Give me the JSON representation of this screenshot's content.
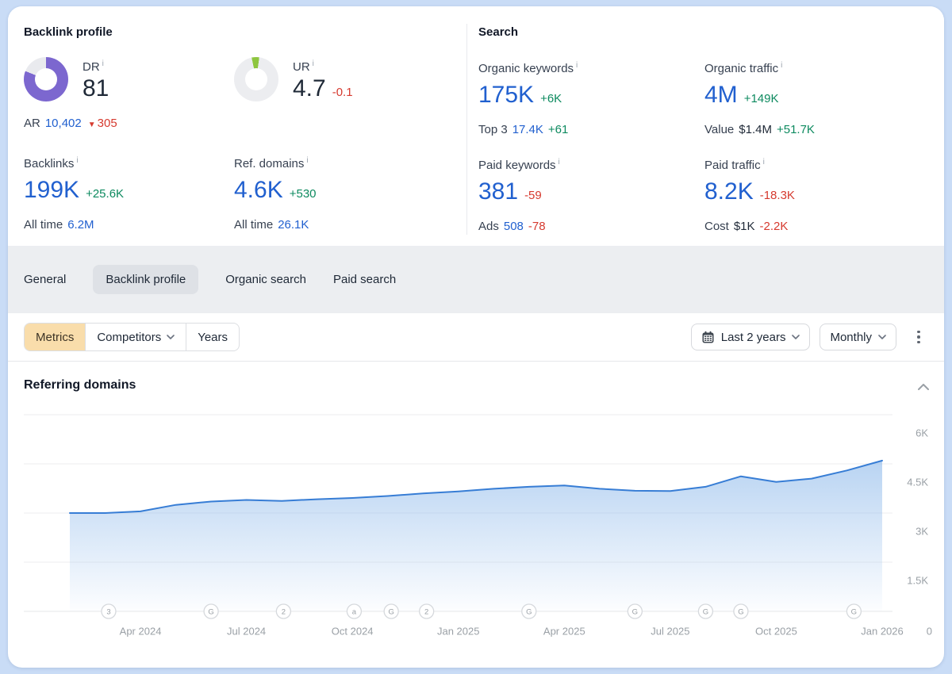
{
  "icons": {
    "info": "i",
    "triangle_down": "▼"
  },
  "colors": {
    "page_background": "#c9dcf6",
    "accent_blue": "#2160cf",
    "positive_green": "#0d8a5f",
    "negative_red": "#d63a2f",
    "dr_purple": "#7c67cf",
    "ur_green": "#8ec63f",
    "chart_line": "#377dd5",
    "tab_band": "#eceef1",
    "metrics_button_bg": "#f9ddab"
  },
  "backlink_profile": {
    "title": "Backlink profile",
    "dr": {
      "label": "DR",
      "value": "81",
      "donut_pct": 81,
      "ar_label": "AR",
      "ar_value": "10,402",
      "ar_change": "305"
    },
    "ur": {
      "label": "UR",
      "value": "4.7",
      "change": "-0.1",
      "donut_pct": 5
    },
    "backlinks": {
      "label": "Backlinks",
      "value": "199K",
      "change": "+25.6K",
      "sub_label": "All time",
      "sub_value": "6.2M"
    },
    "ref_domains": {
      "label": "Ref. domains",
      "value": "4.6K",
      "change": "+530",
      "sub_label": "All time",
      "sub_value": "26.1K"
    }
  },
  "search": {
    "title": "Search",
    "organic_keywords": {
      "label": "Organic keywords",
      "value": "175K",
      "change": "+6K",
      "sub_label": "Top 3",
      "sub_value": "17.4K",
      "sub_change": "+61"
    },
    "organic_traffic": {
      "label": "Organic traffic",
      "value": "4M",
      "change": "+149K",
      "sub_label": "Value",
      "sub_value": "$1.4M",
      "sub_change": "+51.7K"
    },
    "paid_keywords": {
      "label": "Paid keywords",
      "value": "381",
      "change": "-59",
      "sub_label": "Ads",
      "sub_value": "508",
      "sub_change": "-78"
    },
    "paid_traffic": {
      "label": "Paid traffic",
      "value": "8.2K",
      "change": "-18.3K",
      "sub_label": "Cost",
      "sub_value": "$1K",
      "sub_change": "-2.2K"
    }
  },
  "tabs": [
    {
      "label": "General",
      "active": false
    },
    {
      "label": "Backlink profile",
      "active": true
    },
    {
      "label": "Organic search",
      "active": false
    },
    {
      "label": "Paid search",
      "active": false
    }
  ],
  "toolbar": {
    "metrics": "Metrics",
    "competitors": "Competitors",
    "years": "Years",
    "date_range": "Last 2 years",
    "granularity": "Monthly"
  },
  "chart_section": {
    "title": "Referring domains"
  },
  "chart_data": {
    "type": "area",
    "title": "Referring domains",
    "x": [
      "Feb 2024",
      "Mar 2024",
      "Apr 2024",
      "May 2024",
      "Jun 2024",
      "Jul 2024",
      "Aug 2024",
      "Sep 2024",
      "Oct 2024",
      "Nov 2024",
      "Dec 2024",
      "Jan 2025",
      "Feb 2025",
      "Mar 2025",
      "Apr 2025",
      "May 2025",
      "Jun 2025",
      "Jul 2025",
      "Aug 2025",
      "Sep 2025",
      "Oct 2025",
      "Nov 2025",
      "Dec 2025",
      "Jan 2026"
    ],
    "values": [
      3000,
      3000,
      3050,
      3250,
      3350,
      3400,
      3370,
      3420,
      3460,
      3520,
      3600,
      3660,
      3740,
      3800,
      3840,
      3740,
      3680,
      3670,
      3800,
      4120,
      3950,
      4050,
      4300,
      4600
    ],
    "ylabel": "Referring domains",
    "ylim": [
      0,
      6000
    ],
    "grid": "horizontal",
    "legend": "none",
    "y_ticks": [
      {
        "value": 6000,
        "label": "6K"
      },
      {
        "value": 4500,
        "label": "4.5K"
      },
      {
        "value": 3000,
        "label": "3K"
      },
      {
        "value": 1500,
        "label": "1.5K"
      },
      {
        "value": 0,
        "label": "0"
      }
    ],
    "x_ticks": [
      {
        "pos": 2,
        "label": "Apr 2024"
      },
      {
        "pos": 5,
        "label": "Jul 2024"
      },
      {
        "pos": 8,
        "label": "Oct 2024"
      },
      {
        "pos": 11,
        "label": "Jan 2025"
      },
      {
        "pos": 14,
        "label": "Apr 2025"
      },
      {
        "pos": 17,
        "label": "Jul 2025"
      },
      {
        "pos": 20,
        "label": "Oct 2025"
      },
      {
        "pos": 23,
        "label": "Jan 2026"
      }
    ],
    "event_markers": [
      {
        "label": "3",
        "pos": 1.1
      },
      {
        "label": "G",
        "pos": 4.0
      },
      {
        "label": "2",
        "pos": 6.05
      },
      {
        "label": "a",
        "pos": 8.05
      },
      {
        "label": "G",
        "pos": 9.1
      },
      {
        "label": "2",
        "pos": 10.1
      },
      {
        "label": "G",
        "pos": 13.0
      },
      {
        "label": "G",
        "pos": 16.0
      },
      {
        "label": "G",
        "pos": 18.0
      },
      {
        "label": "G",
        "pos": 19.0
      },
      {
        "label": "G",
        "pos": 22.2
      }
    ]
  }
}
